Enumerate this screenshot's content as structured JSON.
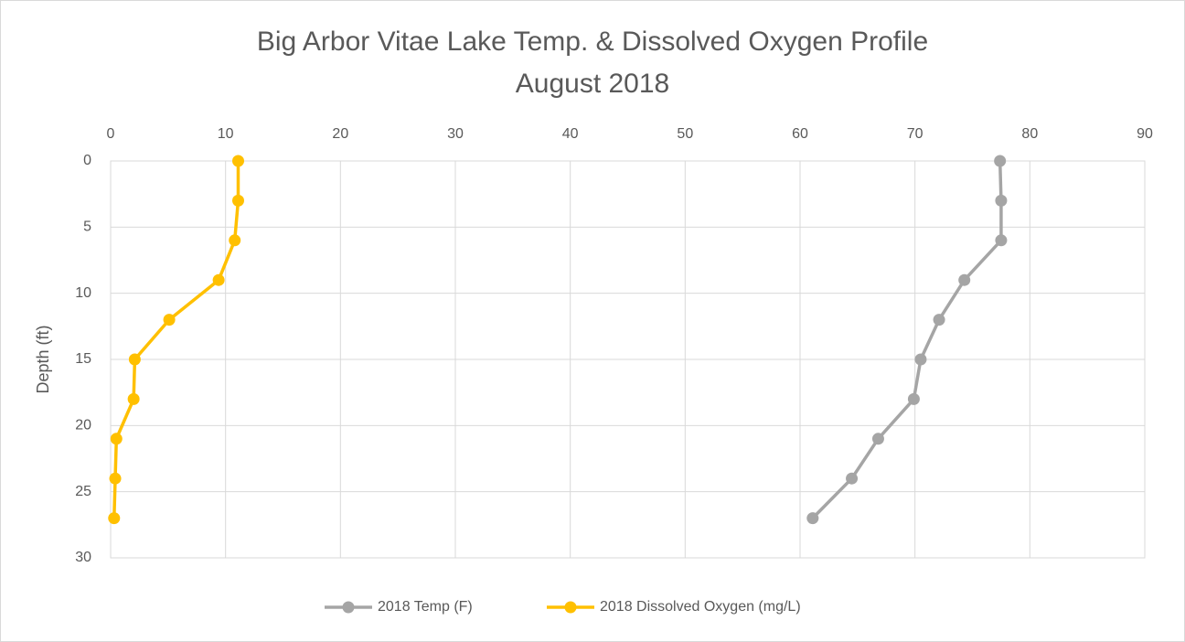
{
  "chart_data": {
    "type": "line",
    "title": "Big Arbor Vitae Lake Temp. & Dissolved Oxygen Profile",
    "subtitle": "August 2018",
    "y_label": "Depth (ft)",
    "y": [
      0,
      3,
      6,
      9,
      12,
      15,
      18,
      21,
      24,
      27
    ],
    "ylim": [
      0,
      30
    ],
    "yticks": [
      0,
      5,
      10,
      15,
      20,
      25,
      30
    ],
    "y_inverted": true,
    "xlim": [
      0,
      90
    ],
    "xticks": [
      0,
      10,
      20,
      30,
      40,
      50,
      60,
      70,
      80,
      90
    ],
    "x_axis_position": "top",
    "grid": true,
    "legend": "bottom",
    "series": [
      {
        "name": "2018 Temp (F)",
        "color": "#a5a5a5",
        "values": [
          77.4,
          77.5,
          77.5,
          74.3,
          72.1,
          70.5,
          69.9,
          66.8,
          64.5,
          61.1
        ]
      },
      {
        "name": "2018 Dissolved Oxygen (mg/L)",
        "color": "#ffc000",
        "values": [
          11.1,
          11.1,
          10.8,
          9.4,
          5.1,
          2.1,
          2.0,
          0.5,
          0.4,
          0.3
        ]
      }
    ]
  }
}
